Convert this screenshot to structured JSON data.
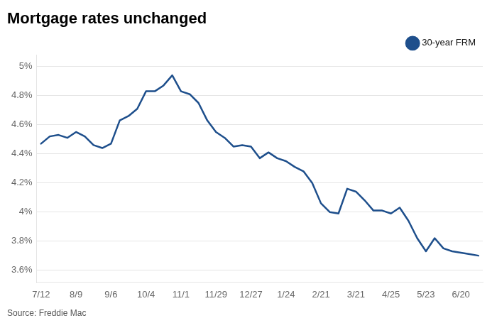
{
  "chart_data": {
    "type": "line",
    "title": "Mortgage rates unchanged",
    "annotations": [
      "Source: Freddie Mac"
    ],
    "categories": [
      "7/12",
      null,
      null,
      null,
      "8/9",
      null,
      null,
      null,
      "9/6",
      null,
      null,
      null,
      "10/4",
      null,
      null,
      null,
      "11/1",
      null,
      null,
      null,
      "11/29",
      null,
      null,
      null,
      "12/27",
      null,
      null,
      null,
      "1/24",
      null,
      null,
      null,
      "2/21",
      null,
      null,
      null,
      "3/21",
      null,
      null,
      null,
      "4/25",
      null,
      null,
      null,
      "5/23",
      null,
      null,
      null,
      "6/20",
      null,
      null
    ],
    "series": [
      {
        "name": "30-year FRM",
        "color": "#1e4f8c",
        "values": [
          4.47,
          4.52,
          4.53,
          4.51,
          4.55,
          4.52,
          4.46,
          4.44,
          4.47,
          4.63,
          4.66,
          4.71,
          4.83,
          4.83,
          4.87,
          4.94,
          4.83,
          4.81,
          4.75,
          4.63,
          4.55,
          4.51,
          4.45,
          4.46,
          4.45,
          4.37,
          4.41,
          4.37,
          4.35,
          4.31,
          4.28,
          4.2,
          4.06,
          4.0,
          3.99,
          4.16,
          4.14,
          4.08,
          4.01,
          4.01,
          3.99,
          4.03,
          3.94,
          3.82,
          3.73,
          3.82,
          3.75,
          3.73,
          3.72,
          3.71,
          3.7
        ]
      }
    ],
    "ylim": [
      3.52,
      5.08
    ],
    "yticks": [
      {
        "value": 3.6,
        "label": "3.6%"
      },
      {
        "value": 3.8,
        "label": "3.8%"
      },
      {
        "value": 4,
        "label": "4%"
      },
      {
        "value": 4.2,
        "label": "4.2%"
      },
      {
        "value": 4.4,
        "label": "4.4%"
      },
      {
        "value": 4.6,
        "label": "4.6%"
      },
      {
        "value": 4.8,
        "label": "4.8%"
      },
      {
        "value": 5,
        "label": "5%"
      }
    ],
    "grid": true,
    "legend": "upper right"
  }
}
